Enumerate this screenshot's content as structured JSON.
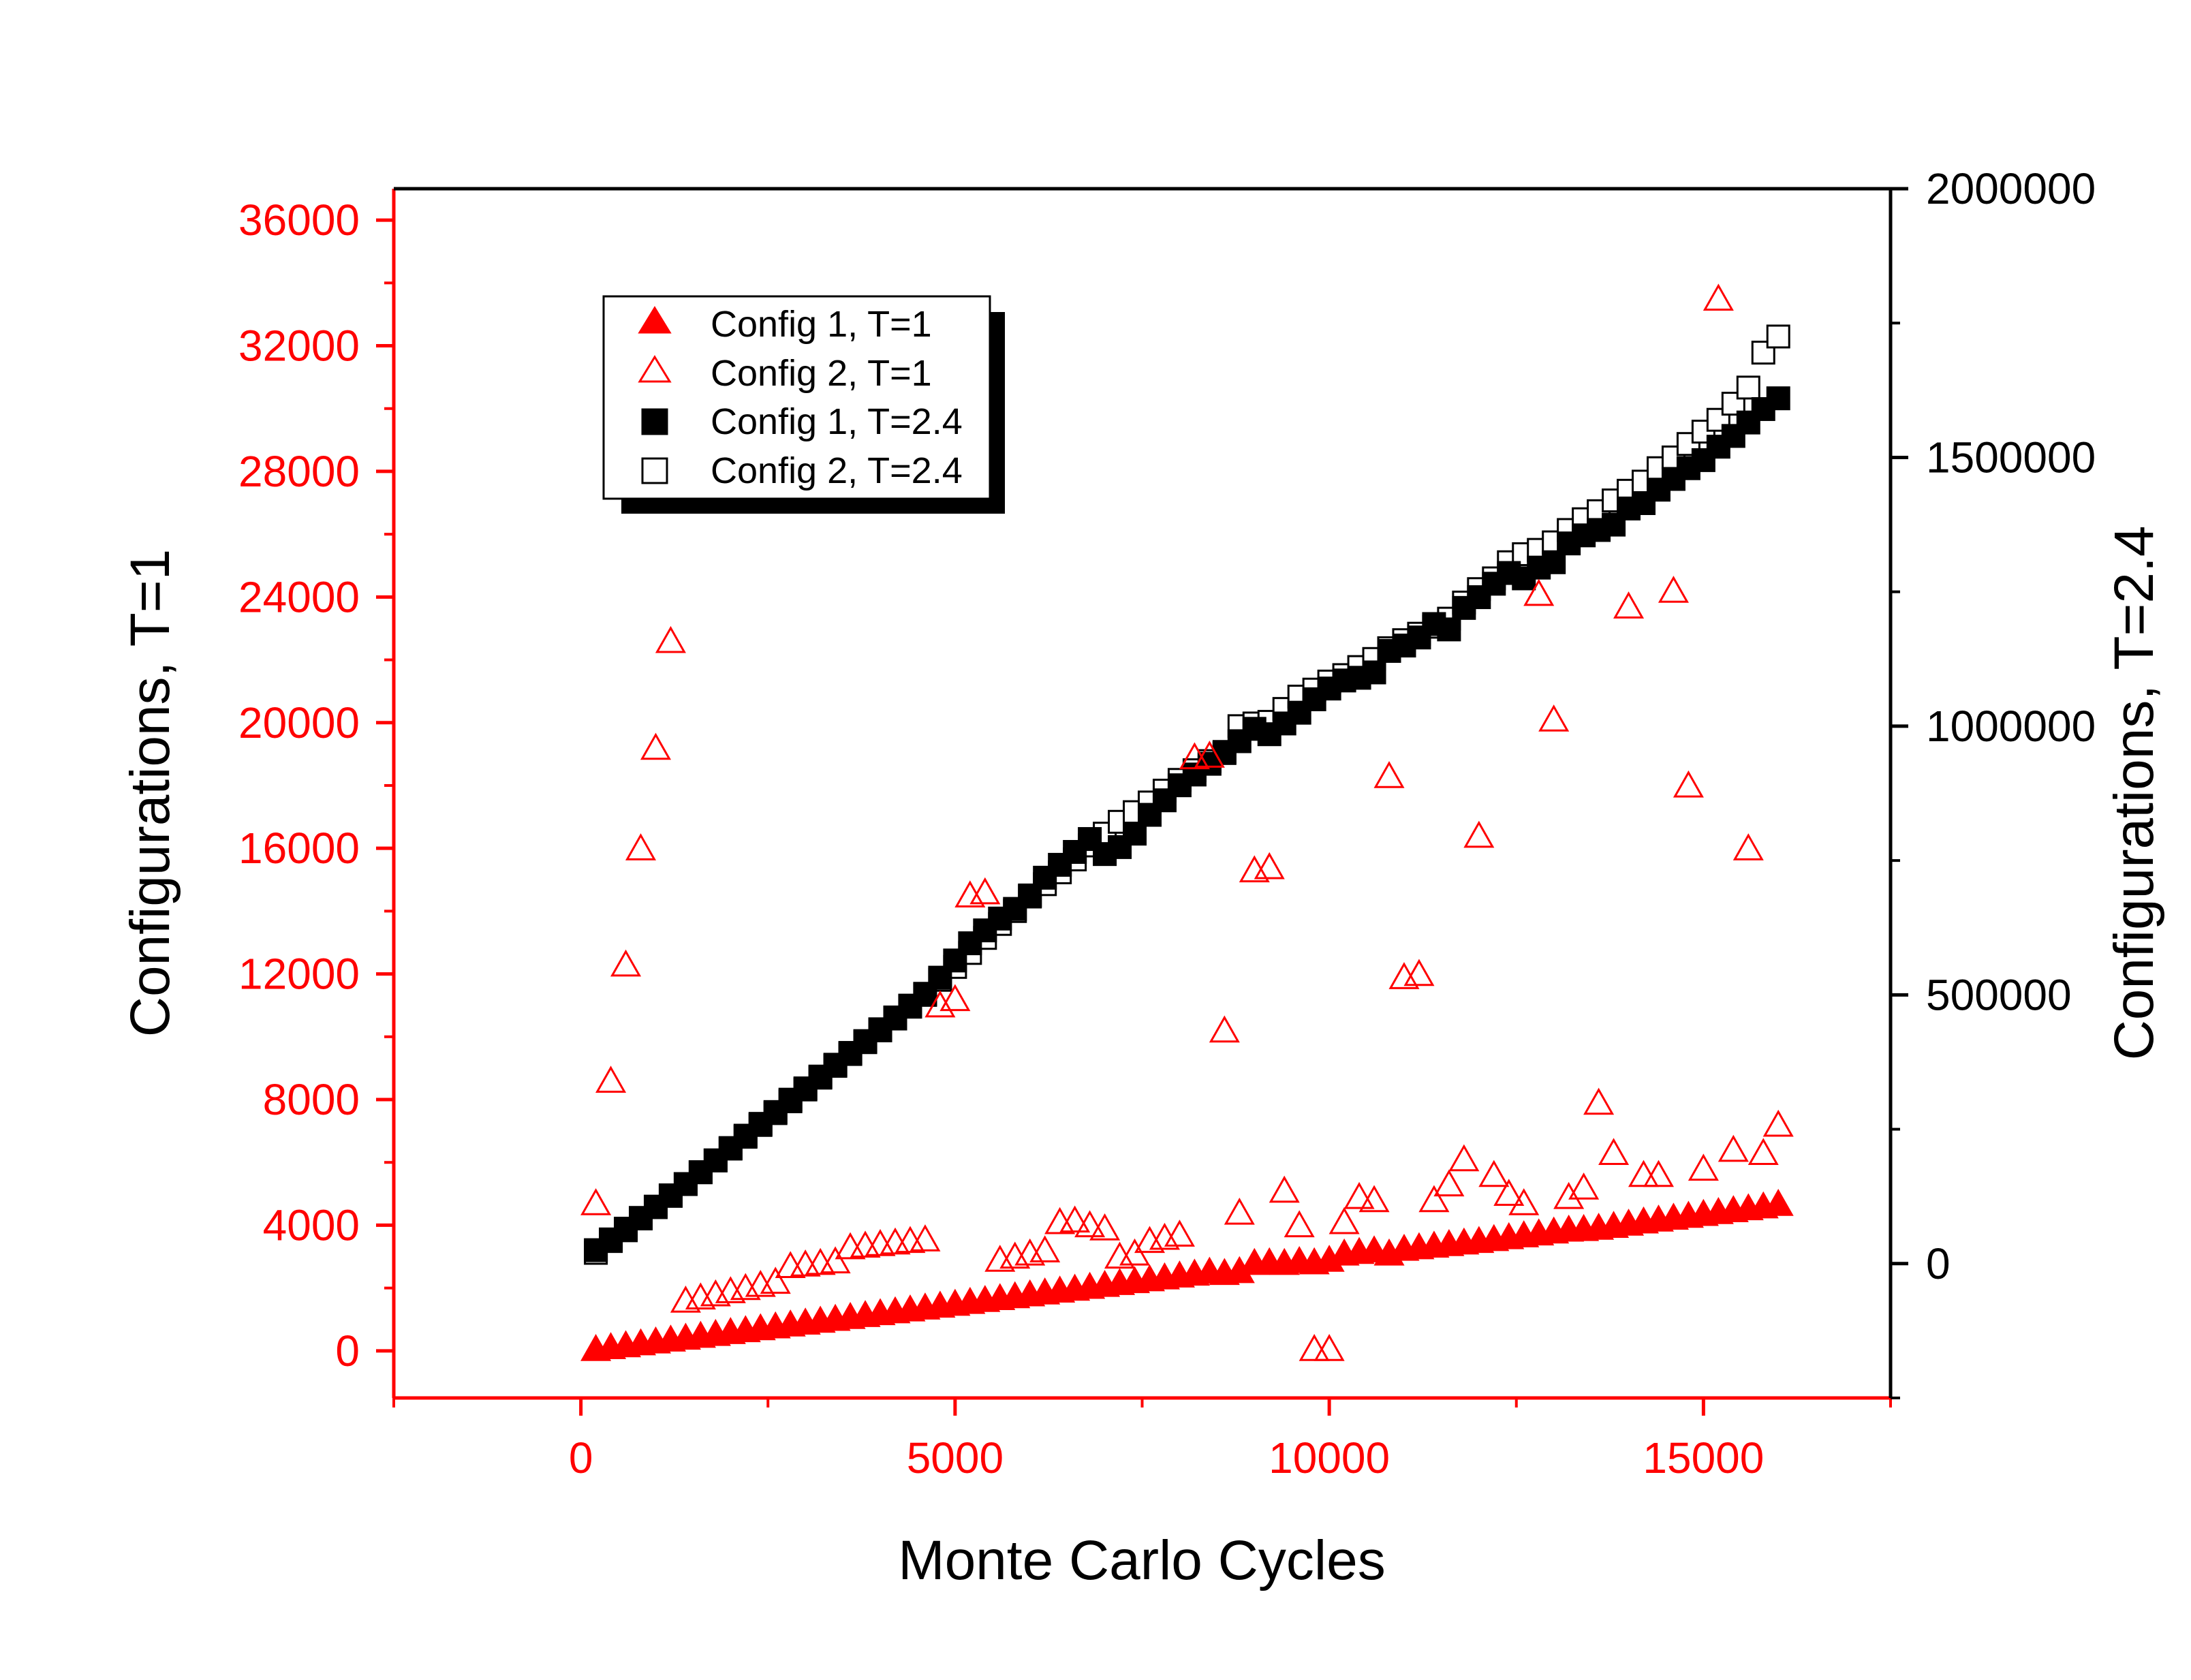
{
  "chart_data": {
    "type": "scatter",
    "title": "",
    "xlabel": "Monte Carlo Cycles",
    "ylabel_left": "Configurations,  T=1",
    "ylabel_right": "Configurations,  T=2.4",
    "xlim": [
      -2500,
      17500
    ],
    "ylim_left": [
      -1500,
      37000
    ],
    "ylim_right": [
      -250000,
      2000000
    ],
    "x_ticks": [
      0,
      5000,
      10000,
      15000
    ],
    "x_tick_labels": [
      "0",
      "5000",
      "10000",
      "15000"
    ],
    "y_left_ticks": [
      0,
      4000,
      8000,
      12000,
      16000,
      20000,
      24000,
      28000,
      32000,
      36000
    ],
    "y_left_tick_labels": [
      "0",
      "4000",
      "8000",
      "12000",
      "16000",
      "20000",
      "24000",
      "28000",
      "32000",
      "36000"
    ],
    "y_right_ticks": [
      0,
      500000,
      1000000,
      1500000,
      2000000
    ],
    "y_right_tick_labels": [
      "0",
      "500000",
      "1000000",
      "1500000",
      "2000000"
    ],
    "grid": false,
    "legend_position": "top-left",
    "colors": {
      "left_axis": "#ff0000",
      "right_axis": "#000000",
      "frame": "#000000"
    },
    "series": [
      {
        "name": "Config 1, T=1",
        "axis": "left",
        "marker": "triangle-filled",
        "color": "#ff0000",
        "x": [
          200,
          400,
          600,
          800,
          1000,
          1200,
          1400,
          1600,
          1800,
          2000,
          2200,
          2400,
          2600,
          2800,
          3000,
          3200,
          3400,
          3600,
          3800,
          4000,
          4200,
          4400,
          4600,
          4800,
          5000,
          5200,
          5400,
          5600,
          5800,
          6000,
          6200,
          6400,
          6600,
          6800,
          7000,
          7200,
          7400,
          7600,
          7800,
          8000,
          8200,
          8400,
          8600,
          8800,
          9000,
          9200,
          9400,
          9600,
          9800,
          10000,
          10200,
          10400,
          10600,
          10800,
          11000,
          11200,
          11400,
          11600,
          11800,
          12000,
          12200,
          12400,
          12600,
          12800,
          13000,
          13200,
          13400,
          13600,
          13800,
          14000,
          14200,
          14400,
          14600,
          14800,
          15000,
          15200,
          15400,
          15600,
          15800,
          16000
        ],
        "y": [
          60,
          120,
          180,
          240,
          300,
          360,
          420,
          480,
          540,
          600,
          660,
          720,
          780,
          840,
          900,
          960,
          1020,
          1080,
          1140,
          1200,
          1260,
          1320,
          1380,
          1440,
          1500,
          1560,
          1620,
          1680,
          1740,
          1800,
          1860,
          1920,
          1980,
          2040,
          2100,
          2160,
          2220,
          2280,
          2340,
          2400,
          2460,
          2520,
          2480,
          2540,
          2800,
          2820,
          2800,
          2860,
          2820,
          2900,
          3100,
          3150,
          3200,
          3100,
          3250,
          3300,
          3350,
          3400,
          3450,
          3500,
          3560,
          3620,
          3680,
          3740,
          3800,
          3860,
          3880,
          3920,
          3980,
          4050,
          4120,
          4180,
          4240,
          4300,
          4360,
          4420,
          4480,
          4540,
          4600,
          4680
        ]
      },
      {
        "name": "Config 2, T=1",
        "axis": "left",
        "marker": "triangle-open",
        "color": "#ff0000",
        "x": [
          200,
          400,
          600,
          800,
          1000,
          1200,
          1400,
          1600,
          1800,
          2000,
          2200,
          2400,
          2600,
          2800,
          3000,
          3200,
          3400,
          3600,
          3800,
          4000,
          4200,
          4400,
          4600,
          4800,
          5000,
          5200,
          5400,
          5600,
          5800,
          6000,
          6200,
          6400,
          6600,
          6800,
          7000,
          7200,
          7400,
          7600,
          7800,
          8000,
          8200,
          8400,
          8600,
          8800,
          9000,
          9200,
          9400,
          9600,
          9800,
          10000,
          10200,
          10400,
          10600,
          10800,
          11000,
          11200,
          11400,
          11600,
          11800,
          12000,
          12200,
          12400,
          12600,
          12800,
          13000,
          13200,
          13400,
          13600,
          13800,
          14000,
          14200,
          14400,
          14600,
          14800,
          15000,
          15200,
          15400,
          15600,
          15800,
          16000
        ],
        "y": [
          4700,
          8600,
          12300,
          16000,
          19200,
          22600,
          1600,
          1700,
          1800,
          1900,
          2000,
          2100,
          2200,
          2700,
          2750,
          2800,
          2850,
          3300,
          3350,
          3400,
          3450,
          3500,
          3550,
          11000,
          11200,
          14500,
          14600,
          2900,
          3000,
          3100,
          3200,
          4100,
          4150,
          4000,
          3900,
          3000,
          3100,
          3500,
          3600,
          3700,
          18900,
          18950,
          10200,
          4400,
          15300,
          15400,
          5100,
          4000,
          60,
          60,
          4100,
          4900,
          4800,
          18300,
          11900,
          12000,
          4800,
          5300,
          6100,
          16400,
          5600,
          5000,
          4700,
          24100,
          20100,
          4900,
          5200,
          7900,
          6300,
          23700,
          5600,
          5600,
          24200,
          18000,
          5800,
          33500,
          6400,
          16000,
          6300,
          7200
        ]
      },
      {
        "name": "Config 1, T=2.4",
        "axis": "right",
        "marker": "square-filled",
        "color": "#000000",
        "x": [
          200,
          400,
          600,
          800,
          1000,
          1200,
          1400,
          1600,
          1800,
          2000,
          2200,
          2400,
          2600,
          2800,
          3000,
          3200,
          3400,
          3600,
          3800,
          4000,
          4200,
          4400,
          4600,
          4800,
          5000,
          5200,
          5400,
          5600,
          5800,
          6000,
          6200,
          6400,
          6600,
          6800,
          7000,
          7200,
          7400,
          7600,
          7800,
          8000,
          8200,
          8400,
          8600,
          8800,
          9000,
          9200,
          9400,
          9600,
          9800,
          10000,
          10200,
          10400,
          10600,
          10800,
          11000,
          11200,
          11400,
          11600,
          11800,
          12000,
          12200,
          12400,
          12600,
          12800,
          13000,
          13200,
          13400,
          13600,
          13800,
          14000,
          14200,
          14400,
          14600,
          14800,
          15000,
          15200,
          15400,
          15600,
          15800,
          16000
        ],
        "y": [
          25000,
          45000,
          65000,
          85000,
          106000,
          127000,
          148000,
          170000,
          192000,
          214000,
          236000,
          258000,
          280000,
          302000,
          324000,
          346000,
          368000,
          390000,
          412000,
          434000,
          456000,
          478000,
          500000,
          532000,
          564000,
          596000,
          620000,
          642000,
          660000,
          685000,
          718000,
          742000,
          766000,
          790000,
          762000,
          775000,
          800000,
          835000,
          862000,
          890000,
          910000,
          930000,
          950000,
          972000,
          995000,
          985000,
          1005000,
          1025000,
          1050000,
          1070000,
          1085000,
          1090000,
          1100000,
          1140000,
          1150000,
          1165000,
          1190000,
          1180000,
          1220000,
          1240000,
          1265000,
          1285000,
          1275000,
          1295000,
          1305000,
          1340000,
          1355000,
          1365000,
          1375000,
          1405000,
          1415000,
          1440000,
          1460000,
          1480000,
          1495000,
          1520000,
          1540000,
          1565000,
          1590000,
          1610000
        ]
      },
      {
        "name": "Config 2, T=2.4",
        "axis": "right",
        "marker": "square-open",
        "color": "#000000",
        "x": [
          200,
          400,
          600,
          800,
          1000,
          1200,
          1400,
          1600,
          1800,
          2000,
          2200,
          2400,
          2600,
          2800,
          3000,
          3200,
          3400,
          3600,
          3800,
          4000,
          4200,
          4400,
          4600,
          4800,
          5000,
          5200,
          5400,
          5600,
          5800,
          6000,
          6200,
          6400,
          6600,
          6800,
          7000,
          7200,
          7400,
          7600,
          7800,
          8000,
          8200,
          8400,
          8600,
          8800,
          9000,
          9200,
          9400,
          9600,
          9800,
          10000,
          10200,
          10400,
          10600,
          10800,
          11000,
          11200,
          11400,
          11600,
          11800,
          12000,
          12200,
          12400,
          12600,
          12800,
          13000,
          13200,
          13400,
          13600,
          13800,
          14000,
          14200,
          14400,
          14600,
          14800,
          15000,
          15200,
          15400,
          15600,
          15800,
          16000
        ],
        "y": [
          20000,
          42000,
          62000,
          84000,
          105000,
          126000,
          148000,
          170000,
          192000,
          215000,
          238000,
          260000,
          282000,
          305000,
          326000,
          348000,
          370000,
          392000,
          414000,
          436000,
          458000,
          480000,
          502000,
          528000,
          552000,
          578000,
          606000,
          632000,
          656000,
          683000,
          706000,
          728000,
          752000,
          778000,
          800000,
          822000,
          840000,
          858000,
          880000,
          900000,
          918000,
          935000,
          952000,
          1000000,
          1005000,
          1008000,
          1032000,
          1055000,
          1068000,
          1083000,
          1095000,
          1110000,
          1125000,
          1145000,
          1160000,
          1172000,
          1185000,
          1200000,
          1230000,
          1255000,
          1275000,
          1305000,
          1320000,
          1328000,
          1342000,
          1365000,
          1385000,
          1400000,
          1420000,
          1438000,
          1455000,
          1480000,
          1500000,
          1525000,
          1548000,
          1570000,
          1600000,
          1630000,
          1695000,
          1725000
        ]
      }
    ]
  }
}
